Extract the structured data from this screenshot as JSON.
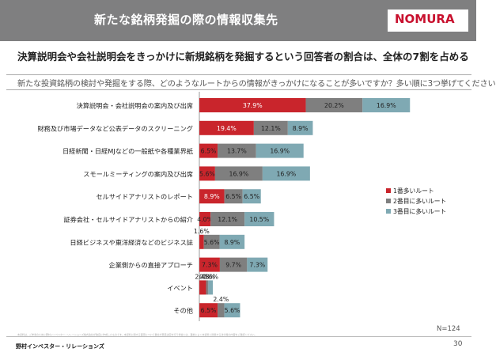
{
  "header": {
    "title": "新たな銘柄発掘の際の情報収集先",
    "logo": "NOMURA"
  },
  "headline": "決算説明会や会社説明会をきっかけに新規銘柄を発掘するという回答者の割合は、全体の7割を占める",
  "question": "新たな投資銘柄の検討や発掘をする際、どのようなルートからの情報がきっかけになることが多いですか？多い順に3つ挙げてください",
  "footer": {
    "company": "野村インベスター・リレーションズ",
    "page": "30",
    "n": "N=124",
    "note": "本資料は、ご参考のために野村インベスター・リレーションズ株式会社が独自に作成したものです。本資料に関する事項について貴社が意思決定を行う場合には、事前によく本資料と関係する法令等の内容をご確認ください。"
  },
  "colors": {
    "first": "#c9252c",
    "second": "#7f7f7f",
    "third": "#7fa9b3"
  },
  "chart_data": {
    "type": "bar",
    "orientation": "horizontal",
    "stacked": true,
    "categories": [
      "決算説明会・会社説明会の案内及び出席",
      "財務及び市場データなど公表データのスクリーニング",
      "日経新聞・日経MJなどの一般紙や各種業界紙",
      "スモールミーティングの案内及び出席",
      "セルサイドアナリストのレポート",
      "証券会社・セルサイドアナリストからの紹介",
      "日経ビジネスや東洋経済などのビジネス誌",
      "企業側からの直接アプローチ",
      "イベント",
      "その他"
    ],
    "series": [
      {
        "name": "1番多いルート",
        "values": [
          37.9,
          19.4,
          6.5,
          5.6,
          8.9,
          4.0,
          1.6,
          7.3,
          2.4,
          6.5
        ],
        "labels": [
          "37.9%",
          "19.4%",
          "6.5%",
          "5.6%",
          "8.9%",
          "4.0%",
          "1.6%",
          "7.3%",
          "2.4%",
          "6.5%"
        ]
      },
      {
        "name": "2番目に多いルート",
        "values": [
          20.2,
          12.1,
          13.7,
          16.9,
          6.5,
          12.1,
          5.6,
          9.7,
          0.8,
          2.4
        ],
        "labels": [
          "20.2%",
          "12.1%",
          "13.7%",
          "16.9%",
          "6.5%",
          "12.1%",
          "5.6%",
          "9.7%",
          "0.8%",
          "2.4%"
        ]
      },
      {
        "name": "3番目に多いルート",
        "values": [
          16.9,
          8.9,
          16.9,
          16.9,
          6.5,
          10.5,
          8.9,
          7.3,
          1.6,
          5.6
        ],
        "labels": [
          "16.9%",
          "8.9%",
          "16.9%",
          "16.9%",
          "6.5%",
          "10.5%",
          "8.9%",
          "7.3%",
          "1.6%",
          "5.6%"
        ]
      }
    ],
    "xlim": [
      0,
      80
    ],
    "legend_position": "right"
  }
}
